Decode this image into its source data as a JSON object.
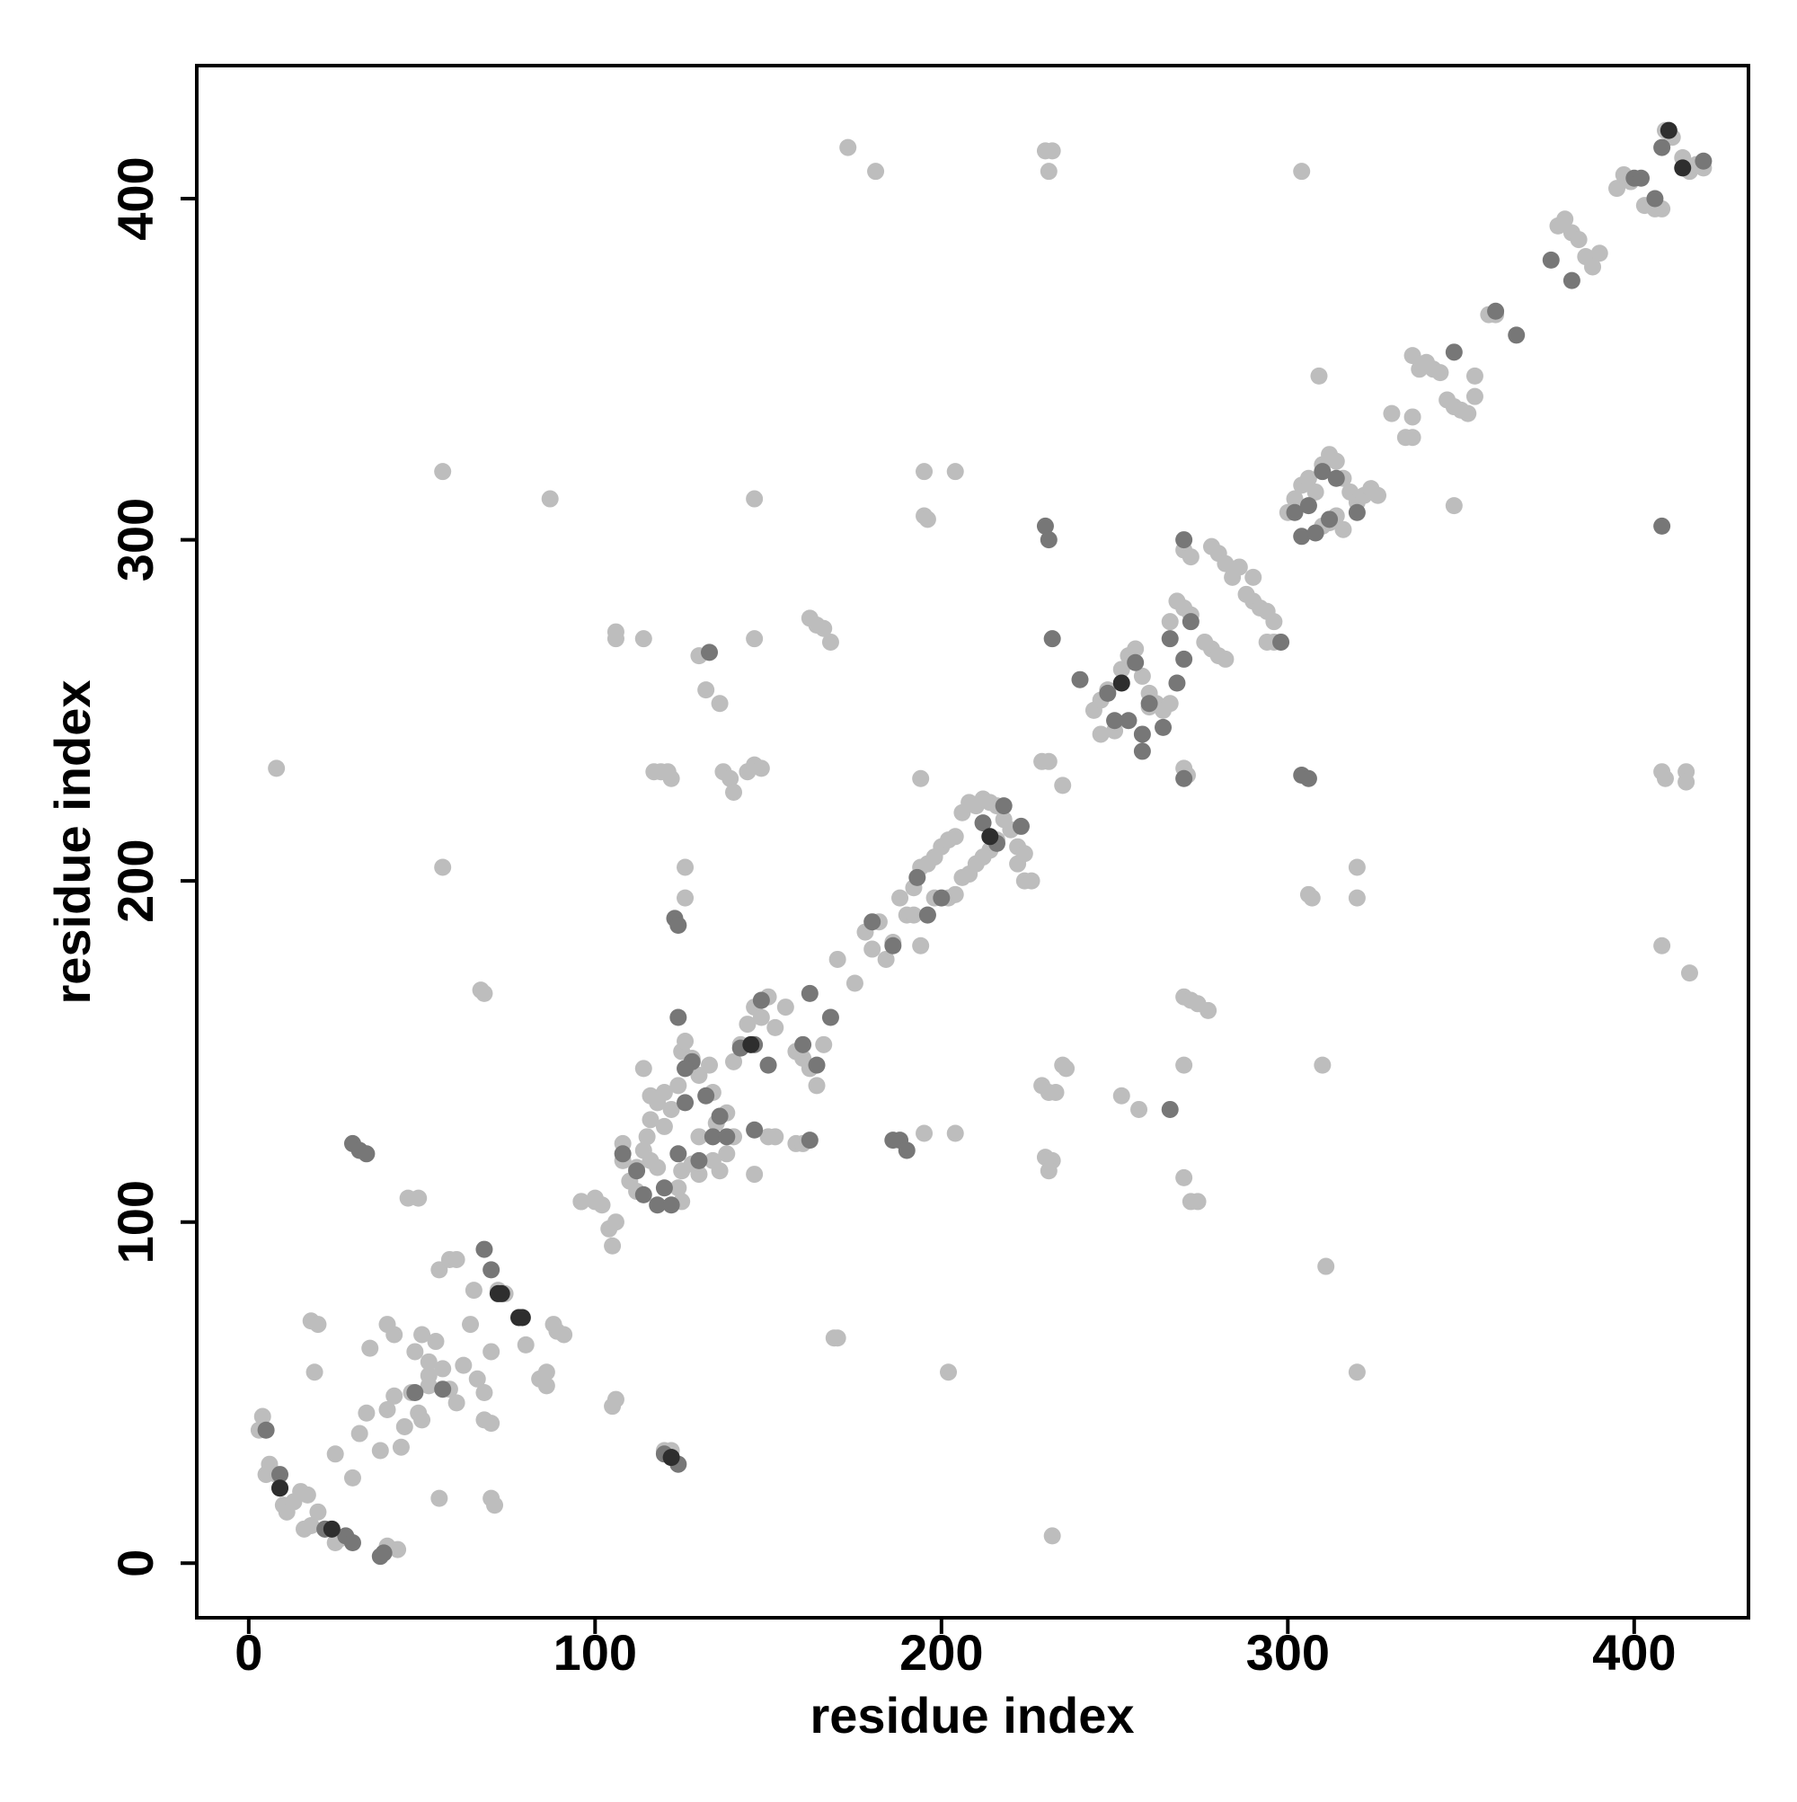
{
  "chart_data": {
    "type": "scatter",
    "xlabel": "residue index",
    "ylabel": "residue index",
    "xlim": [
      -15,
      433
    ],
    "ylim": [
      -16,
      439
    ],
    "xticks": [
      0,
      100,
      200,
      300,
      400
    ],
    "yticks": [
      0,
      100,
      200,
      300,
      400
    ],
    "grid": false,
    "series": [
      {
        "color": "#bdbdbd",
        "x": [
          173,
          181,
          230,
          232,
          231,
          304,
          8,
          56,
          87,
          146,
          195,
          204,
          195,
          196,
          56,
          67,
          68,
          106,
          106,
          114,
          162,
          164,
          166,
          168,
          136,
          132,
          130,
          146,
          117,
          119,
          121,
          122,
          137,
          139,
          140,
          144,
          146,
          148,
          126,
          126,
          194,
          194,
          175,
          229,
          231,
          235,
          309,
          348,
          336,
          334,
          408,
          409,
          415,
          415,
          408,
          416,
          306,
          307,
          320,
          320,
          270,
          271,
          270,
          272,
          274,
          277,
          229,
          231,
          233,
          235,
          236,
          252,
          257,
          230,
          232,
          231,
          270,
          270,
          272,
          274,
          195,
          204,
          202,
          310,
          311,
          320,
          232,
          169,
          170,
          105,
          106,
          120,
          122,
          43,
          40,
          55,
          70,
          71,
          46,
          49,
          18,
          20,
          19,
          89,
          91,
          96,
          100,
          102,
          146,
          158,
          160,
          3,
          5,
          4,
          5,
          6,
          8,
          10,
          11,
          13,
          15,
          17,
          16,
          18,
          20,
          22,
          25,
          26,
          25,
          30,
          32,
          34,
          38,
          40,
          42,
          44,
          45,
          47,
          48,
          50,
          52,
          52,
          54,
          56,
          58,
          60,
          62,
          64,
          66,
          68,
          68,
          70,
          70,
          72,
          74,
          80,
          40,
          42,
          55,
          58,
          60,
          65,
          84,
          86,
          88,
          86,
          50,
          52,
          49,
          35,
          96,
          100,
          104,
          105,
          106,
          108,
          110,
          112,
          115,
          114,
          116,
          118,
          120,
          122,
          124,
          125,
          126,
          128,
          130,
          133,
          135,
          138,
          140,
          142,
          144,
          146,
          148,
          150,
          152,
          155,
          158,
          160,
          162,
          164,
          166,
          108,
          112,
          116,
          118,
          125,
          128,
          130,
          134,
          136,
          138,
          150,
          152,
          114,
          116,
          120,
          124,
          125,
          130,
          134,
          140,
          170,
          178,
          182,
          184,
          188,
          190,
          192,
          194,
          196,
          198,
          200,
          202,
          204,
          206,
          208,
          210,
          212,
          214,
          216,
          218,
          220,
          222,
          222,
          224,
          226,
          224,
          196,
          198,
          202,
          204,
          206,
          208,
          210,
          212,
          214,
          216,
          180,
          186,
          192,
          244,
          246,
          248,
          252,
          254,
          256,
          258,
          260,
          262,
          266,
          268,
          270,
          272,
          270,
          272,
          278,
          280,
          282,
          284,
          286,
          288,
          290,
          292,
          294,
          296,
          276,
          278,
          280,
          282,
          294,
          296,
          290,
          300,
          302,
          304,
          306,
          308,
          310,
          312,
          314,
          316,
          318,
          320,
          322,
          324,
          326,
          310,
          312,
          314,
          316,
          246,
          250,
          260,
          264,
          266,
          336,
          338,
          340,
          342,
          344,
          346,
          348,
          350,
          352,
          354,
          330,
          336,
          354,
          358,
          360,
          378,
          380,
          382,
          384,
          386,
          388,
          390,
          395,
          397,
          399,
          403,
          406,
          408,
          409,
          411,
          414,
          416,
          418,
          420
        ],
        "y": [
          415,
          408,
          414,
          414,
          408,
          408,
          233,
          320,
          312,
          312,
          320,
          320,
          307,
          306,
          204,
          168,
          167,
          273,
          271,
          271,
          277,
          275,
          274,
          270,
          252,
          256,
          266,
          271,
          232,
          232,
          232,
          230,
          232,
          230,
          226,
          232,
          234,
          233,
          204,
          195,
          230,
          181,
          170,
          235,
          235,
          228,
          348,
          310,
          336,
          330,
          232,
          230,
          232,
          229,
          181,
          173,
          196,
          195,
          204,
          195,
          233,
          231,
          166,
          165,
          164,
          162,
          140,
          138,
          138,
          146,
          145,
          137,
          133,
          119,
          118,
          115,
          146,
          113,
          106,
          106,
          126,
          126,
          56,
          146,
          87,
          56,
          8,
          66,
          66,
          46,
          48,
          33,
          33,
          4,
          5,
          19,
          19,
          17,
          107,
          107,
          71,
          70,
          56,
          68,
          67,
          106,
          106,
          105,
          114,
          123,
          123,
          39,
          39,
          43,
          26,
          29,
          26,
          17,
          15,
          18,
          21,
          20,
          10,
          11,
          15,
          10,
          6,
          7,
          32,
          25,
          38,
          44,
          33,
          45,
          49,
          34,
          40,
          50,
          62,
          67,
          55,
          59,
          65,
          57,
          51,
          47,
          58,
          70,
          54,
          42,
          50,
          41,
          62,
          80,
          79,
          64,
          70,
          67,
          86,
          89,
          89,
          80,
          54,
          56,
          70,
          52,
          42,
          52,
          44,
          63,
          106,
          107,
          98,
          93,
          100,
          118,
          112,
          116,
          125,
          121,
          130,
          135,
          128,
          133,
          140,
          150,
          153,
          148,
          143,
          146,
          129,
          132,
          147,
          152,
          158,
          163,
          160,
          166,
          157,
          163,
          150,
          148,
          145,
          140,
          152,
          123,
          109,
          118,
          116,
          115,
          117,
          114,
          118,
          115,
          120,
          125,
          125,
          145,
          137,
          138,
          110,
          106,
          125,
          138,
          125,
          177,
          185,
          188,
          177,
          195,
          190,
          198,
          204,
          205,
          207,
          210,
          212,
          213,
          220,
          223,
          222,
          224,
          223,
          222,
          218,
          215,
          210,
          205,
          200,
          200,
          208,
          190,
          195,
          195,
          196,
          201,
          202,
          205,
          207,
          209,
          212,
          180,
          182,
          190,
          250,
          253,
          256,
          262,
          266,
          268,
          260,
          255,
          252,
          276,
          282,
          280,
          278,
          297,
          295,
          298,
          296,
          293,
          289,
          292,
          284,
          282,
          280,
          279,
          276,
          270,
          268,
          266,
          265,
          270,
          270,
          289,
          308,
          312,
          316,
          318,
          314,
          322,
          325,
          323,
          318,
          314,
          311,
          313,
          315,
          313,
          304,
          305,
          307,
          303,
          243,
          244,
          251,
          250,
          252,
          354,
          350,
          352,
          350,
          349,
          341,
          339,
          338,
          337,
          342,
          337,
          330,
          348,
          366,
          366,
          392,
          394,
          390,
          388,
          383,
          380,
          384,
          403,
          407,
          405,
          398,
          397,
          397,
          420,
          418,
          412,
          408,
          410,
          409
        ]
      },
      {
        "color": "#777777",
        "x": [
          30,
          32,
          34,
          133,
          123,
          124,
          230,
          231,
          304,
          306,
          408,
          232,
          240,
          258,
          270,
          266,
          188,
          190,
          186,
          120,
          122,
          124,
          162,
          28,
          30,
          38,
          39,
          5,
          9,
          9,
          48,
          56,
          70,
          68,
          22,
          108,
          112,
          114,
          118,
          120,
          122,
          124,
          126,
          128,
          130,
          132,
          134,
          136,
          138,
          142,
          146,
          148,
          150,
          160,
          162,
          164,
          168,
          146,
          124,
          126,
          180,
          186,
          193,
          196,
          200,
          212,
          216,
          218,
          223,
          248,
          254,
          258,
          260,
          264,
          266,
          268,
          270,
          272,
          270,
          298,
          302,
          304,
          306,
          308,
          310,
          312,
          314,
          320,
          256,
          250,
          348,
          360,
          366,
          376,
          382,
          400,
          402,
          406,
          408,
          420
        ],
        "y": [
          123,
          121,
          120,
          267,
          189,
          187,
          304,
          300,
          231,
          230,
          304,
          271,
          259,
          238,
          230,
          133,
          124,
          121,
          124,
          32,
          31,
          29,
          124,
          8,
          6,
          2,
          3,
          39,
          26,
          22,
          50,
          51,
          86,
          92,
          10,
          120,
          115,
          108,
          105,
          110,
          105,
          120,
          135,
          147,
          118,
          137,
          125,
          131,
          125,
          151,
          152,
          165,
          146,
          152,
          167,
          146,
          160,
          127,
          160,
          145,
          188,
          181,
          201,
          190,
          195,
          217,
          211,
          222,
          216,
          255,
          247,
          243,
          252,
          245,
          271,
          258,
          265,
          276,
          300,
          270,
          308,
          301,
          310,
          302,
          320,
          306,
          318,
          308,
          264,
          247,
          355,
          367,
          360,
          382,
          376,
          406,
          406,
          400,
          415,
          411
        ]
      },
      {
        "color": "#2e2e2e",
        "x": [
          72,
          73,
          78,
          79,
          9,
          24,
          214,
          252,
          410,
          414,
          122,
          145
        ],
        "y": [
          79,
          79,
          72,
          72,
          22,
          10,
          213,
          258,
          420,
          409,
          31,
          152
        ]
      }
    ]
  }
}
